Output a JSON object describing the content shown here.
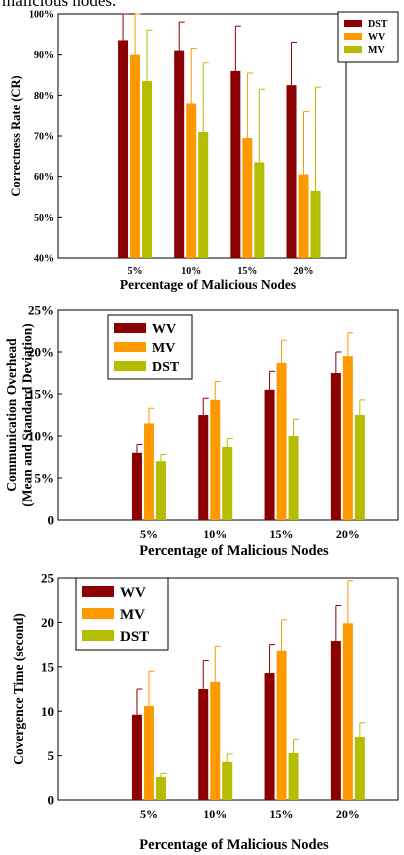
{
  "header_text": "malicious nodes.",
  "chart_data": [
    {
      "type": "bar",
      "categories": [
        "5%",
        "10%",
        "15%",
        "20%"
      ],
      "series": [
        {
          "name": "DST",
          "color": "#8b0000",
          "values": [
            93.5,
            91,
            86,
            82.5
          ],
          "errors": [
            6.5,
            7,
            11,
            10.5
          ]
        },
        {
          "name": "WV",
          "color": "#ff9900",
          "values": [
            90,
            78,
            69.5,
            60.5
          ],
          "errors": [
            10,
            13.5,
            16,
            15.5
          ]
        },
        {
          "name": "MV",
          "color": "#b5bd00",
          "values": [
            83.5,
            71,
            63.5,
            56.5
          ],
          "errors": [
            12.5,
            17,
            18,
            25.5
          ]
        }
      ],
      "ylim": [
        40,
        100
      ],
      "yticks": [
        "40%",
        "50%",
        "60%",
        "70%",
        "80%",
        "90%",
        "100%"
      ],
      "ylabel": "Correctness Rate (CR)",
      "xlabel": "Percentage of Malicious Nodes",
      "legend": "top-right"
    },
    {
      "type": "bar",
      "categories": [
        "5%",
        "10%",
        "15%",
        "20%"
      ],
      "series": [
        {
          "name": "WV",
          "color": "#8b0000",
          "values": [
            8,
            12.5,
            15.5,
            17.5
          ],
          "errors": [
            1,
            2,
            2.2,
            2.5
          ]
        },
        {
          "name": "MV",
          "color": "#ff9900",
          "values": [
            11.5,
            14.3,
            18.7,
            19.5
          ],
          "errors": [
            1.8,
            2.2,
            2.7,
            2.8
          ]
        },
        {
          "name": "DST",
          "color": "#b5bd00",
          "values": [
            7,
            8.7,
            10,
            12.5
          ],
          "errors": [
            0.8,
            1,
            2,
            1.8
          ]
        }
      ],
      "ylim": [
        0,
        25
      ],
      "yticks": [
        "0",
        "5%",
        "10%",
        "15%",
        "20%",
        "25%"
      ],
      "ylabel": [
        "Communication Overhead",
        "(Mean and Standard Deviation)"
      ],
      "xlabel": "Percentage of Malicious Nodes",
      "legend": "top-left"
    },
    {
      "type": "bar",
      "categories": [
        "5%",
        "10%",
        "15%",
        "20%"
      ],
      "series": [
        {
          "name": "WV",
          "color": "#8b0000",
          "values": [
            9.6,
            12.5,
            14.3,
            17.9
          ],
          "errors": [
            2.9,
            3.2,
            3.2,
            4
          ]
        },
        {
          "name": "MV",
          "color": "#ff9900",
          "values": [
            10.6,
            13.3,
            16.8,
            19.9
          ],
          "errors": [
            3.9,
            4,
            3.5,
            4.8
          ]
        },
        {
          "name": "DST",
          "color": "#b5bd00",
          "values": [
            2.6,
            4.3,
            5.3,
            7.1
          ],
          "errors": [
            0.4,
            0.9,
            1.5,
            1.6
          ]
        }
      ],
      "ylim": [
        0,
        25
      ],
      "yticks": [
        "0",
        "5",
        "10",
        "15",
        "20",
        "25"
      ],
      "ylabel": "Covergence Time (second)",
      "xlabel": "Percentage of Malicious Nodes",
      "legend": "top-left"
    }
  ]
}
